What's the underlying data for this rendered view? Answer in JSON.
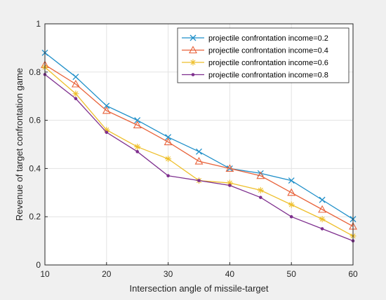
{
  "chart_data": {
    "type": "line",
    "xlabel": "Intersection angle of missile-target",
    "ylabel": "Revenue of target confrontation game",
    "xlim": [
      10,
      60
    ],
    "ylim": [
      0,
      1
    ],
    "xticks": [
      "10",
      "20",
      "30",
      "40",
      "50",
      "60"
    ],
    "yticks": [
      "0",
      "0.2",
      "0.4",
      "0.6",
      "0.8",
      "1"
    ],
    "grid": true,
    "legend_position": "top-right",
    "x": [
      10,
      15,
      20,
      25,
      30,
      35,
      40,
      45,
      50,
      55,
      60
    ],
    "series": [
      {
        "name": "projectile confrontation income=0.2",
        "marker": "x",
        "color": "#1f8fc9",
        "values": [
          0.88,
          0.78,
          0.66,
          0.6,
          0.53,
          0.47,
          0.4,
          0.38,
          0.35,
          0.27,
          0.19
        ]
      },
      {
        "name": "projectile confrontation income=0.4",
        "marker": "triangle",
        "color": "#e8623a",
        "values": [
          0.83,
          0.75,
          0.64,
          0.58,
          0.51,
          0.43,
          0.4,
          0.37,
          0.3,
          0.23,
          0.16
        ]
      },
      {
        "name": "projectile confrontation income=0.6",
        "marker": "star",
        "color": "#eebf2b",
        "values": [
          0.82,
          0.71,
          0.56,
          0.49,
          0.44,
          0.35,
          0.34,
          0.31,
          0.25,
          0.19,
          0.12
        ]
      },
      {
        "name": "projectile confrontation income=0.8",
        "marker": "dot",
        "color": "#7e2f8e",
        "values": [
          0.79,
          0.69,
          0.55,
          0.47,
          0.37,
          0.35,
          0.33,
          0.28,
          0.2,
          0.15,
          0.1
        ]
      }
    ]
  }
}
